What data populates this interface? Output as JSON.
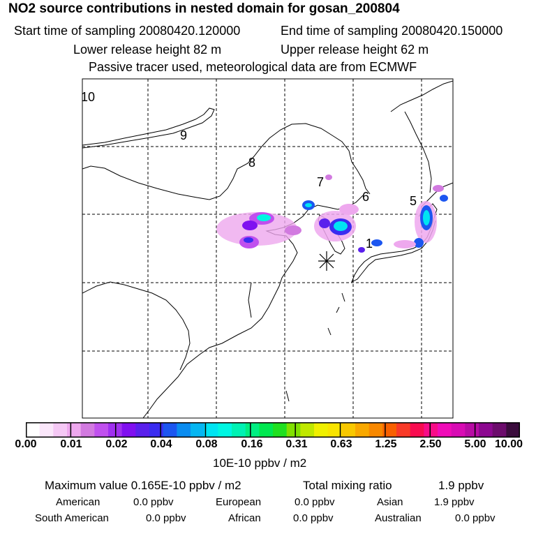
{
  "header": {
    "title": "NO2 source contributions in nested domain for gosan_200804",
    "start_time": "Start time of sampling 20080420.120000",
    "end_time": "End time of sampling 20080420.150000",
    "lower_release": "Lower release height   82 m",
    "upper_release": "Upper release height   62 m",
    "tracer_note": "Passive tracer used, meteorological data are from ECMWF"
  },
  "map": {
    "contour_labels": [
      "10",
      "9",
      "8",
      "7",
      "6",
      "5",
      "1"
    ],
    "receptor_marker": "asterisk"
  },
  "legend": {
    "colors": [
      "#ffffff",
      "#fbe7fb",
      "#f5c8f5",
      "#eea8ee",
      "#d27ae0",
      "#c050ee",
      "#a030f0",
      "#8010f0",
      "#5a20ec",
      "#3a2cf0",
      "#1c56f0",
      "#0a8cf0",
      "#06b6f2",
      "#00e4f2",
      "#00f6e2",
      "#00f2b4",
      "#00ee82",
      "#00e850",
      "#20e020",
      "#80e000",
      "#c0e800",
      "#f0f000",
      "#f8e400",
      "#f8c800",
      "#f8a800",
      "#f88800",
      "#f86000",
      "#f83a28",
      "#f80c50",
      "#f80c88",
      "#f00cb8",
      "#d80cb4",
      "#b80ca4",
      "#8c0890",
      "#6c0c6c",
      "#3a0c3c"
    ],
    "tick_labels": [
      "0.00",
      "0.01",
      "0.02",
      "0.04",
      "0.08",
      "0.16",
      "0.31",
      "0.63",
      "1.25",
      "2.50",
      "5.00",
      "10.00"
    ],
    "unit": "10E-10 ppbv / m2"
  },
  "stats": {
    "maximum_value": "Maximum value  0.165E-10 ppbv / m2",
    "total_label": "Total mixing ratio",
    "total_value": "1.9 ppbv",
    "regions": [
      {
        "name": "American",
        "value": "0.0 ppbv"
      },
      {
        "name": "European",
        "value": "0.0 ppbv"
      },
      {
        "name": "Asian",
        "value": "1.9 ppbv"
      },
      {
        "name": "South American",
        "value": "0.0 ppbv"
      },
      {
        "name": "African",
        "value": "0.0 ppbv"
      },
      {
        "name": "Australian",
        "value": "0.0 ppbv"
      }
    ]
  }
}
